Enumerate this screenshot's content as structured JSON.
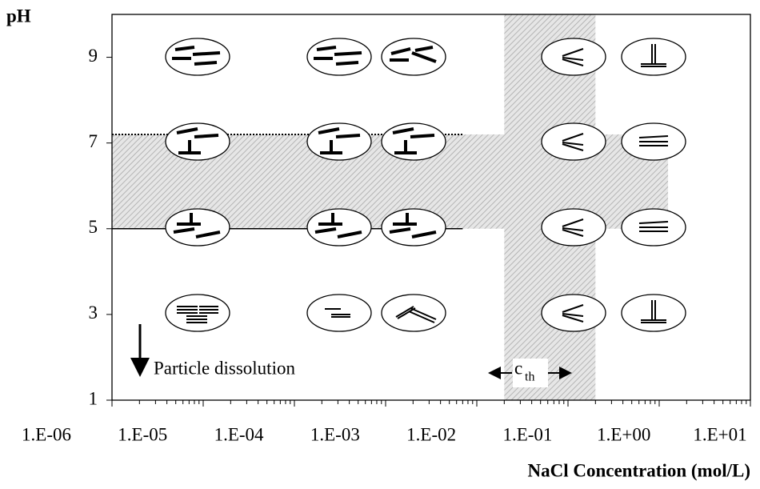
{
  "chart_data": {
    "type": "region",
    "y_label": "pH",
    "x_label": "NaCl Concentration (mol/L)",
    "xscale": "log",
    "xlim": [
      1e-06,
      10
    ],
    "xticks": [
      {
        "value": 1e-06,
        "label": "1.E-06"
      },
      {
        "value": 1e-05,
        "label": "1.E-05"
      },
      {
        "value": 0.0001,
        "label": "1.E-04"
      },
      {
        "value": 0.001,
        "label": "1.E-03"
      },
      {
        "value": 0.01,
        "label": "1.E-02"
      },
      {
        "value": 0.1,
        "label": "1.E-01"
      },
      {
        "value": 1,
        "label": "1.E+00"
      },
      {
        "value": 10,
        "label": "1.E+01"
      }
    ],
    "ylim": [
      1,
      10
    ],
    "yticks": [
      1,
      3,
      5,
      7,
      9
    ],
    "shaded_regions": [
      {
        "x": [
          1e-06,
          1.25
        ],
        "y": [
          5,
          7.2
        ]
      },
      {
        "x": [
          0.02,
          0.2
        ],
        "y": [
          1,
          10
        ]
      }
    ],
    "boundary_lines": [
      {
        "y": 7.2,
        "x": [
          1e-06,
          0.007
        ],
        "style": "dotted"
      },
      {
        "y": 5,
        "x": [
          1e-06,
          0.007
        ],
        "style": "solid"
      }
    ],
    "annotations": {
      "dissolution": "Particle dissolution",
      "threshold": "c",
      "threshold_sub": "th"
    }
  }
}
